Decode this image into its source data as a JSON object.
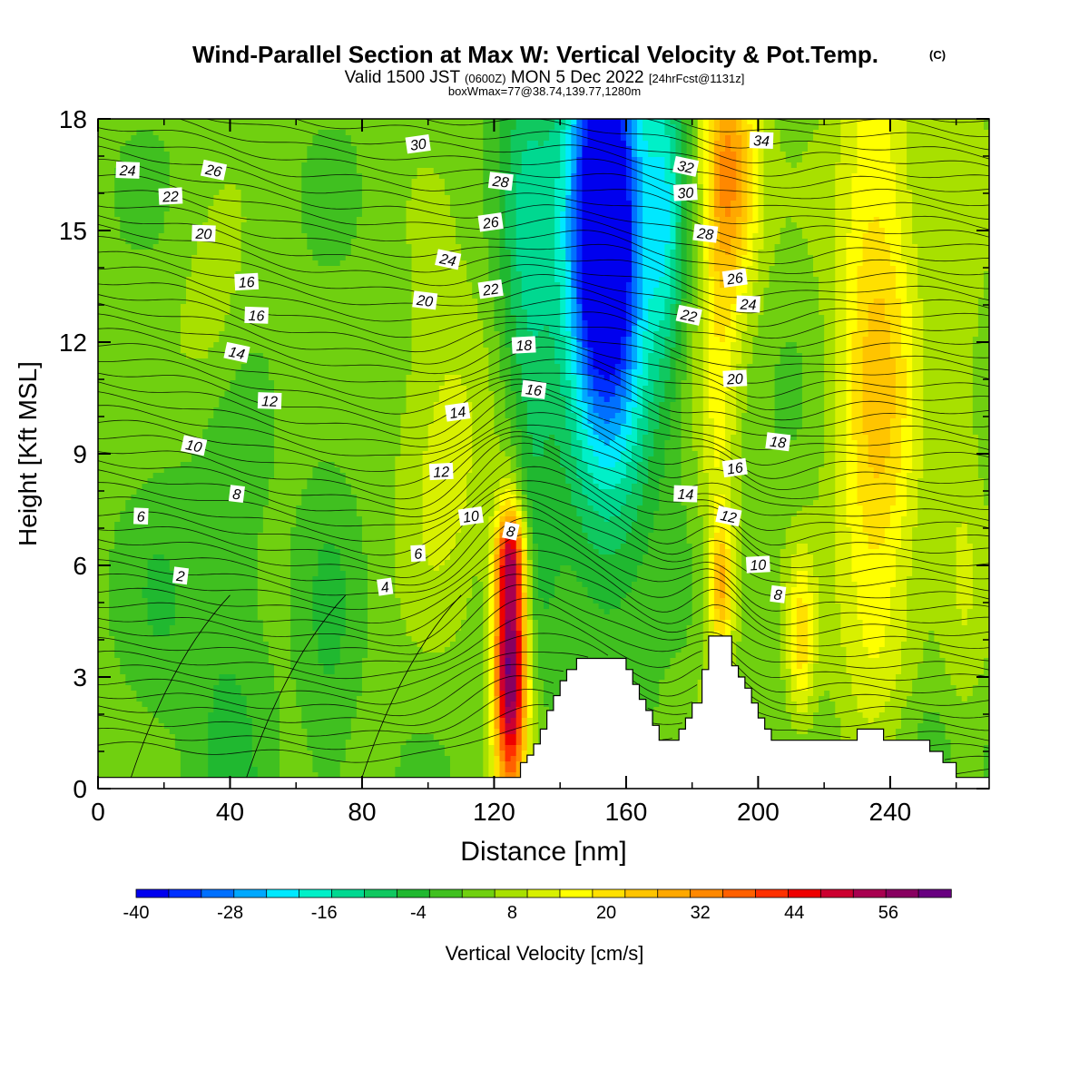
{
  "chart_data": {
    "type": "heatmap",
    "title": "Wind-Parallel Section at Max W: Vertical Velocity & Pot.Temp.",
    "title_mark": "(C)",
    "subtitle_main": "Valid 1500 JST",
    "subtitle_utc": "(0600Z)",
    "subtitle_date": "MON 5 Dec 2022",
    "subtitle_fcst": "[24hrFcst@1131z]",
    "subtitle2": "boxWmax=77@38.74,139.77,1280m",
    "xlabel": "Distance [nm]",
    "ylabel": "Height [Kft MSL]",
    "xlim": [
      0,
      270
    ],
    "ylim": [
      0,
      18
    ],
    "x_ticks": [
      "0",
      "40",
      "80",
      "120",
      "160",
      "200",
      "240"
    ],
    "y_ticks": [
      "0",
      "3",
      "6",
      "9",
      "12",
      "15",
      "18"
    ],
    "colorbar": {
      "label": "Vertical Velocity [cm/s]",
      "ticks": [
        "-40",
        "-28",
        "-16",
        "-4",
        "8",
        "20",
        "32",
        "44",
        "56"
      ],
      "range": [
        -40,
        64
      ],
      "colors": [
        "#0000ee",
        "#0030ff",
        "#0070ff",
        "#00a8ff",
        "#00e8ff",
        "#00f0c8",
        "#00d890",
        "#10c860",
        "#20b830",
        "#40c020",
        "#70d010",
        "#a8e000",
        "#d8f000",
        "#ffff00",
        "#ffe000",
        "#ffc400",
        "#ffa800",
        "#ff8800",
        "#ff6000",
        "#ff3000",
        "#ee0000",
        "#cc0030",
        "#a80050",
        "#880060",
        "#680080"
      ]
    },
    "theta_labels": [
      {
        "text": "30",
        "x": 97,
        "y": 17.3
      },
      {
        "text": "24",
        "x": 9,
        "y": 16.6
      },
      {
        "text": "26",
        "x": 35,
        "y": 16.6
      },
      {
        "text": "22",
        "x": 22,
        "y": 15.9
      },
      {
        "text": "28",
        "x": 122,
        "y": 16.3
      },
      {
        "text": "26",
        "x": 119,
        "y": 15.2
      },
      {
        "text": "20",
        "x": 32,
        "y": 14.9
      },
      {
        "text": "24",
        "x": 106,
        "y": 14.2
      },
      {
        "text": "16",
        "x": 45,
        "y": 13.6
      },
      {
        "text": "20",
        "x": 99,
        "y": 13.1
      },
      {
        "text": "22",
        "x": 119,
        "y": 13.4
      },
      {
        "text": "16",
        "x": 48,
        "y": 12.7
      },
      {
        "text": "14",
        "x": 42,
        "y": 11.7
      },
      {
        "text": "18",
        "x": 129,
        "y": 11.9
      },
      {
        "text": "16",
        "x": 132,
        "y": 10.7
      },
      {
        "text": "14",
        "x": 109,
        "y": 10.1
      },
      {
        "text": "12",
        "x": 52,
        "y": 10.4
      },
      {
        "text": "10",
        "x": 29,
        "y": 9.2
      },
      {
        "text": "12",
        "x": 104,
        "y": 8.5
      },
      {
        "text": "8",
        "x": 42,
        "y": 7.9
      },
      {
        "text": "10",
        "x": 113,
        "y": 7.3
      },
      {
        "text": "6",
        "x": 13,
        "y": 7.3
      },
      {
        "text": "8",
        "x": 125,
        "y": 6.9
      },
      {
        "text": "6",
        "x": 97,
        "y": 6.3
      },
      {
        "text": "2",
        "x": 25,
        "y": 5.7
      },
      {
        "text": "4",
        "x": 87,
        "y": 5.4
      },
      {
        "text": "34",
        "x": 201,
        "y": 17.4
      },
      {
        "text": "32",
        "x": 178,
        "y": 16.7
      },
      {
        "text": "30",
        "x": 178,
        "y": 16.0
      },
      {
        "text": "28",
        "x": 184,
        "y": 14.9
      },
      {
        "text": "26",
        "x": 193,
        "y": 13.7
      },
      {
        "text": "24",
        "x": 197,
        "y": 13.0
      },
      {
        "text": "22",
        "x": 179,
        "y": 12.7
      },
      {
        "text": "20",
        "x": 193,
        "y": 11.0
      },
      {
        "text": "18",
        "x": 206,
        "y": 9.3
      },
      {
        "text": "16",
        "x": 193,
        "y": 8.6
      },
      {
        "text": "14",
        "x": 178,
        "y": 7.9
      },
      {
        "text": "12",
        "x": 191,
        "y": 7.3
      },
      {
        "text": "10",
        "x": 200,
        "y": 6.0
      },
      {
        "text": "8",
        "x": 206,
        "y": 5.2
      }
    ],
    "vertical_velocity_features": [
      {
        "x": 125,
        "y": 3.5,
        "sx": 3.5,
        "sy": 2.6,
        "amp": 62,
        "note": "strong updraft"
      },
      {
        "x": 125,
        "y": 6.3,
        "sx": 3,
        "sy": 0.8,
        "amp": 22
      },
      {
        "x": 153,
        "y": 15.5,
        "sx": 8,
        "sy": 3.5,
        "amp": -38,
        "note": "downdraft core"
      },
      {
        "x": 155,
        "y": 13.5,
        "sx": 10,
        "sy": 6,
        "amp": -22
      },
      {
        "x": 130,
        "y": 13,
        "sx": 6,
        "sy": 6,
        "amp": -14
      },
      {
        "x": 172,
        "y": 15.5,
        "sx": 4,
        "sy": 3,
        "amp": -16
      },
      {
        "x": 192,
        "y": 16.5,
        "sx": 6,
        "sy": 2.5,
        "amp": 26
      },
      {
        "x": 188,
        "y": 9,
        "sx": 4,
        "sy": 10,
        "amp": 10
      },
      {
        "x": 236,
        "y": 11,
        "sx": 9,
        "sy": 8,
        "amp": 20
      },
      {
        "x": 213,
        "y": 4,
        "sx": 3,
        "sy": 1.6,
        "amp": 16
      },
      {
        "x": 189,
        "y": 5.5,
        "sx": 2.5,
        "sy": 1.1,
        "amp": 18
      },
      {
        "x": 105,
        "y": 9.5,
        "sx": 10,
        "sy": 3,
        "amp": 10
      },
      {
        "x": 35,
        "y": 12.5,
        "sx": 8,
        "sy": 2,
        "amp": 6
      },
      {
        "x": 40,
        "y": 3,
        "sx": 8,
        "sy": 6,
        "amp": -6
      },
      {
        "x": 70,
        "y": 3,
        "sx": 6,
        "sy": 5,
        "amp": -5
      },
      {
        "x": 20,
        "y": 5,
        "sx": 8,
        "sy": 3,
        "amp": -4
      },
      {
        "x": 245,
        "y": 1.2,
        "sx": 12,
        "sy": 1.2,
        "amp": -7
      },
      {
        "x": 262,
        "y": 9.5,
        "sx": 5,
        "sy": 9,
        "amp": 6
      }
    ],
    "terrain_kft": [
      [
        0,
        0.3
      ],
      [
        118,
        0.3
      ],
      [
        126,
        0.3
      ],
      [
        128,
        0.7
      ],
      [
        130,
        0.9
      ],
      [
        132,
        1.2
      ],
      [
        134,
        1.6
      ],
      [
        136,
        2.1
      ],
      [
        138,
        2.5
      ],
      [
        140,
        2.9
      ],
      [
        142,
        3.2
      ],
      [
        145,
        3.5
      ],
      [
        150,
        3.5
      ],
      [
        158,
        3.5
      ],
      [
        160,
        3.2
      ],
      [
        162,
        2.8
      ],
      [
        164,
        2.4
      ],
      [
        166,
        2.1
      ],
      [
        168,
        1.7
      ],
      [
        170,
        1.3
      ],
      [
        174,
        1.3
      ],
      [
        176,
        1.6
      ],
      [
        178,
        1.9
      ],
      [
        180,
        2.3
      ],
      [
        183,
        3.2
      ],
      [
        185,
        4.1
      ],
      [
        189,
        4.1
      ],
      [
        192,
        3.3
      ],
      [
        194,
        3.0
      ],
      [
        196,
        2.7
      ],
      [
        198,
        2.3
      ],
      [
        200,
        1.9
      ],
      [
        202,
        1.6
      ],
      [
        204,
        1.3
      ],
      [
        228,
        1.3
      ],
      [
        230,
        1.6
      ],
      [
        236,
        1.6
      ],
      [
        238,
        1.3
      ],
      [
        250,
        1.3
      ],
      [
        252,
        1.0
      ],
      [
        256,
        0.7
      ],
      [
        260,
        0.3
      ],
      [
        270,
        0.3
      ]
    ]
  }
}
